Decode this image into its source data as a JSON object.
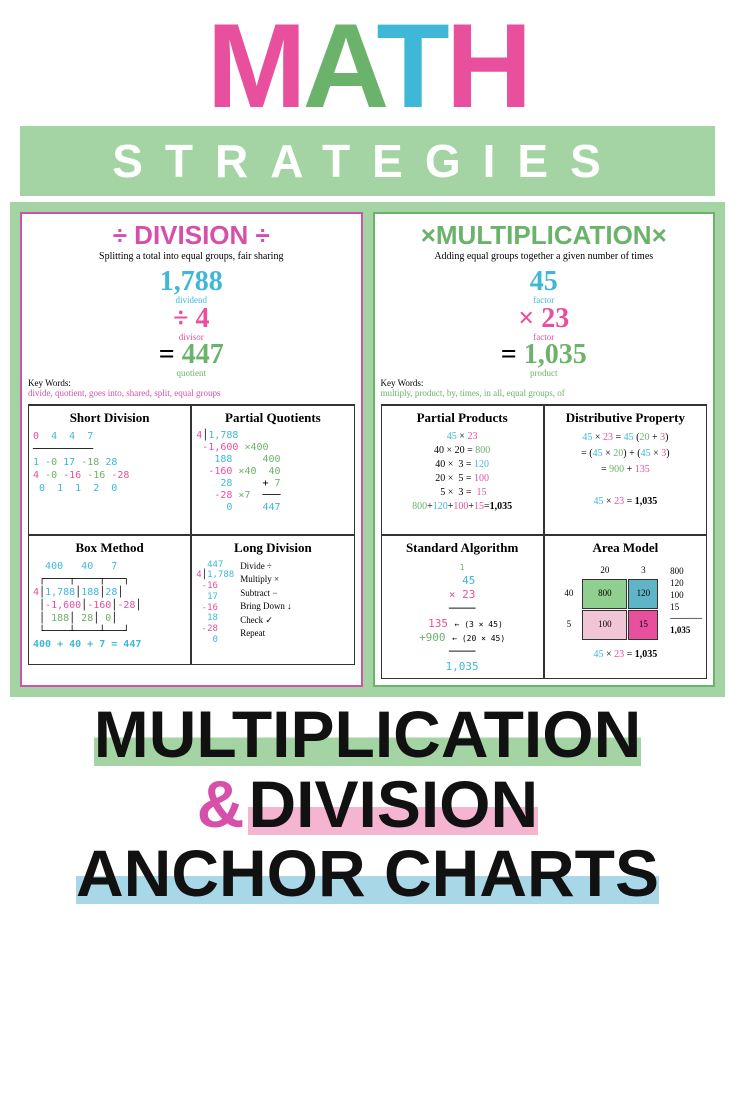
{
  "colors": {
    "pink": "#e84f9c",
    "green": "#6bb36b",
    "blue": "#3fb8d8",
    "dark": "#1a1a1a",
    "mint": "#a4d4a4"
  },
  "header": {
    "math_letters": [
      {
        "char": "M",
        "color": "#e84f9c"
      },
      {
        "char": "A",
        "color": "#6bb36b"
      },
      {
        "char": "T",
        "color": "#3fb8d8"
      },
      {
        "char": "H",
        "color": "#e84f9c"
      }
    ],
    "strategies": "STRATEGIES"
  },
  "division": {
    "title": "÷ DIVISION ÷",
    "title_color": "#d64fa8",
    "sub": "Splitting a total into equal groups, fair sharing",
    "eq": {
      "a": "1,788",
      "a_lbl": "dividend",
      "op": "÷",
      "b": "4",
      "b_lbl": "divisor",
      "eq": "=",
      "c": "447",
      "c_lbl": "quotient"
    },
    "key_label": "Key Words:",
    "key": "divide, quotient, goes into, shared, split, equal groups",
    "cells": [
      {
        "h": "Short Division",
        "body_html": "<div style='font-family:monospace;font-size:10px;line-height:1.3'><span style='color:#e84f9c'>0</span>&nbsp;&nbsp;<span style='color:#3fb8d8'>4&nbsp;&nbsp;4&nbsp;&nbsp;7</span><br>──────────<br><span style='color:#3fb8d8'>1</span>&nbsp;<span style='color:#6bb36b'>-0</span>&nbsp;<span style='color:#3fb8d8'>17</span>&nbsp;<span style='color:#6bb36b'>-18</span>&nbsp;<span style='color:#3fb8d8'>28</span><br><span style='color:#e84f9c'>4</span> <span style='color:#6bb36b'>-0</span> <span style='color:#e84f9c'>-16</span> <span style='color:#6bb36b'>-16</span> <span style='color:#e84f9c'>-28</span><br>&nbsp;<span style='color:#3fb8d8'>0&nbsp;&nbsp;1&nbsp;&nbsp;1&nbsp;&nbsp;2&nbsp;&nbsp;0</span></div>"
      },
      {
        "h": "Partial Quotients",
        "body_html": "<div style='font-family:monospace;font-size:10px;line-height:1.2'><span style='color:#e84f9c'>4</span>│<span style='color:#3fb8d8'>1,788</span><br>&nbsp;<span style='color:#e84f9c'>-1,600</span> <span style='color:#6bb36b'>×400</span><br>&nbsp;&nbsp;&nbsp;<span style='color:#3fb8d8'>188</span>&nbsp;&nbsp;&nbsp;&nbsp;&nbsp;<span style='color:#6bb36b'>400</span><br>&nbsp;&nbsp;<span style='color:#e84f9c'>-160</span> <span style='color:#6bb36b'>×40</span>&nbsp;&nbsp;<span style='color:#6bb36b'>40</span><br>&nbsp;&nbsp;&nbsp;&nbsp;<span style='color:#3fb8d8'>28</span>&nbsp;&nbsp;&nbsp;&nbsp;&nbsp;+&nbsp;<span style='color:#6bb36b'>7</span><br>&nbsp;&nbsp;&nbsp;<span style='color:#e84f9c'>-28</span> <span style='color:#6bb36b'>×7</span>&nbsp;&nbsp;───<br>&nbsp;&nbsp;&nbsp;&nbsp;&nbsp;<span style='color:#3fb8d8'>0</span>&nbsp;&nbsp;&nbsp;&nbsp;&nbsp;<span style='color:#3fb8d8'>447</span></div>"
      },
      {
        "h": "Box Method",
        "body_html": "<div style='font-family:monospace;font-size:10px;line-height:1.3'>&nbsp;&nbsp;<span style='color:#3fb8d8'>400&nbsp;&nbsp;&nbsp;40&nbsp;&nbsp;&nbsp;7</span><br>&nbsp;┌────┬────┬───┐<br><span style='color:#e84f9c'>4</span>│<span style='color:#3fb8d8'>1,788</span>│<span style='color:#3fb8d8'>188</span>│<span style='color:#3fb8d8'>28</span>│<br>&nbsp;│<span style='color:#e84f9c'>-1,600</span>│<span style='color:#e84f9c'>-160</span>│<span style='color:#e84f9c'>-28</span>│<br>&nbsp;│&nbsp;<span style='color:#6bb36b'>188</span>│&nbsp;<span style='color:#6bb36b'>28</span>│&nbsp;<span style='color:#6bb36b'>0</span>│<br>&nbsp;└────┴────┴───┘<br><span style='color:#3fb8d8;font-weight:bold'>400 + 40 + 7 = 447</span></div>"
      },
      {
        "h": "Long Division",
        "body_html": "<div style='display:flex;gap:6px'><div style='font-family:monospace;font-size:9px;line-height:1.2'><span style='color:#3fb8d8'>&nbsp;&nbsp;447</span><br><span style='color:#e84f9c'>4</span>│<span style='color:#3fb8d8'>1,788</span><br>&nbsp;<span style='color:#e84f9c'>-16</span><br>&nbsp;&nbsp;<span style='color:#3fb8d8'>17</span><br>&nbsp;<span style='color:#e84f9c'>-16</span><br>&nbsp;&nbsp;<span style='color:#3fb8d8'>18</span><br>&nbsp;<span style='color:#e84f9c'>-28</span><br>&nbsp;&nbsp;&nbsp;<span style='color:#3fb8d8'>0</span></div><div style='font-size:9px;line-height:1.5'>Divide ÷<br>Multiply ×<br>Subtract −<br>Bring Down ↓<br>Check ✓<br>Repeat</div></div>"
      }
    ]
  },
  "multiplication": {
    "title": "×MULTIPLICATION×",
    "title_color": "#6bb36b",
    "sub": "Adding equal groups together a given number of times",
    "eq": {
      "a": "45",
      "a_lbl": "factor",
      "op": "×",
      "b": "23",
      "b_lbl": "factor",
      "eq": "=",
      "c": "1,035",
      "c_lbl": "product"
    },
    "key_label": "Key Words:",
    "key": "multiply, product, by, times, in all, equal groups, of",
    "cells": [
      {
        "h": "Partial Products",
        "body_html": "<div style='font-size:10px;line-height:1.4;text-align:center'><span style='color:#3fb8d8'>45</span> × <span style='color:#e84f9c'>23</span><br>40 × 20 = <span style='color:#6bb36b'>800</span><br>40 × &nbsp;3 = <span style='color:#3fb8d8'>120</span><br>20 × &nbsp;5 = <span style='color:#e84f9c'>100</span><br>&nbsp;5 × &nbsp;3 = &nbsp;<span style='color:#e84f9c'>15</span><br><span style='color:#6bb36b'>800</span>+<span style='color:#3fb8d8'>120</span>+<span style='color:#e84f9c'>100</span>+<span style='color:#e84f9c'>15</span>=<span style='font-weight:bold'>1,035</span></div>"
      },
      {
        "h": "Distributive Property",
        "body_html": "<div style='font-size:10px;line-height:1.6;text-align:center'><span style='color:#3fb8d8'>45</span> × <span style='color:#e84f9c'>23</span> = <span style='color:#3fb8d8'>45</span> (<span style='color:#6bb36b'>20</span> + <span style='color:#e84f9c'>3</span>)<br>= (<span style='color:#3fb8d8'>45</span> × <span style='color:#6bb36b'>20</span>) + (<span style='color:#3fb8d8'>45</span> × <span style='color:#e84f9c'>3</span>)<br>= <span style='color:#6bb36b'>900</span> + <span style='color:#e84f9c'>135</span><br><br><span style='color:#3fb8d8'>45</span> × <span style='color:#e84f9c'>23</span> = <span style='font-weight:bold'>1,035</span></div>"
      },
      {
        "h": "Standard Algorithm",
        "body_html": "<div style='font-family:monospace;font-size:11px;line-height:1.3;text-align:center'><span style='color:#6bb36b;font-size:8px'>1</span><br><span style='color:#3fb8d8'>&nbsp;&nbsp;45</span><br><span style='color:#e84f9c'>×&nbsp;23</span><br>────<br><span style='color:#e84f9c'>&nbsp;135</span> <span style='font-size:8px'>← (3 × 45)</span><br><span style='color:#6bb36b'>+900</span> <span style='font-size:8px'>← (20 × 45)</span><br>────<br><span style='color:#3fb8d8'>1,035</span></div>"
      },
      {
        "h": "Area Model",
        "body_html": ""
      }
    ],
    "area": {
      "cols": [
        "20",
        "3"
      ],
      "rows": [
        "40",
        "5"
      ],
      "cells": [
        [
          "800",
          "120"
        ],
        [
          "100",
          "15"
        ]
      ],
      "colors": [
        [
          "#8fcf8f",
          "#5fb5c5"
        ],
        [
          "#f0c5d5",
          "#e84f9c"
        ]
      ],
      "sum": [
        "800",
        "120",
        "100",
        "15",
        "1,035"
      ],
      "result": "45 × 23 = 1,035"
    }
  },
  "footer": {
    "l1": "MULTIPLICATION",
    "l2a": "&",
    "l2b": "DIVISION",
    "l3": "ANCHOR CHARTS"
  }
}
